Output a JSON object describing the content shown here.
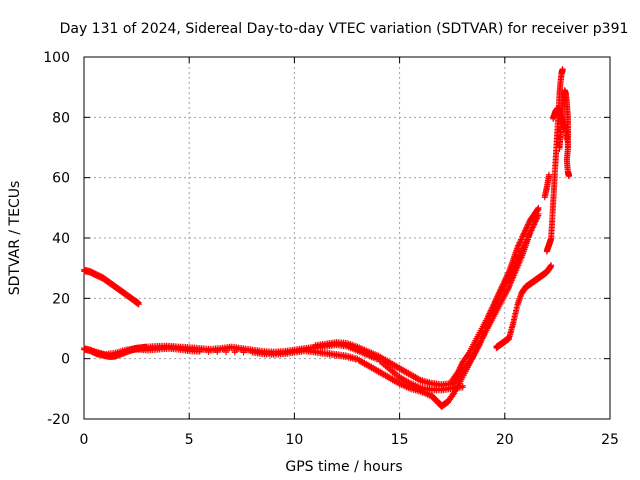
{
  "chart_data": {
    "type": "scatter",
    "title": "Day 131 of 2024, Sidereal Day-to-day VTEC variation (SDTVAR) for receiver p391",
    "xlabel": "GPS time / hours",
    "ylabel": "SDTVAR / TECUs",
    "xlim": [
      0,
      25
    ],
    "ylim": [
      -20,
      100
    ],
    "xticks": [
      0,
      5,
      10,
      15,
      20,
      25
    ],
    "yticks": [
      -20,
      0,
      20,
      40,
      60,
      80,
      100
    ],
    "xtick_labels": [
      "0",
      "5",
      "10",
      "15",
      "20",
      "25"
    ],
    "ytick_labels": [
      "-20",
      "0",
      "20",
      "40",
      "60",
      "80",
      "100"
    ],
    "grid": true,
    "marker": "plus",
    "color": "#ff0000",
    "series": [
      {
        "name": "arc-a-upper",
        "points": [
          [
            0,
            29.5
          ],
          [
            0.3,
            29
          ],
          [
            0.6,
            28
          ],
          [
            0.9,
            27
          ],
          [
            1.2,
            25.5
          ],
          [
            1.5,
            24
          ],
          [
            1.8,
            22.5
          ],
          [
            2.1,
            21
          ],
          [
            2.4,
            19.5
          ],
          [
            2.6,
            18.5
          ]
        ]
      },
      {
        "name": "arc-b-low",
        "points": [
          [
            0,
            3.5
          ],
          [
            0.3,
            3
          ],
          [
            0.6,
            2
          ],
          [
            0.9,
            1.5
          ],
          [
            1.2,
            1
          ],
          [
            1.5,
            1.2
          ],
          [
            1.8,
            2
          ],
          [
            2.1,
            2.8
          ],
          [
            2.4,
            3.5
          ],
          [
            2.7,
            3.8
          ],
          [
            3.0,
            4
          ],
          [
            3.5,
            4.2
          ],
          [
            4.0,
            4.3
          ],
          [
            4.5,
            4
          ],
          [
            5.0,
            3.8
          ],
          [
            5.5,
            3.5
          ],
          [
            6.0,
            3.2
          ],
          [
            6.5,
            3.5
          ],
          [
            7.0,
            4
          ],
          [
            7.5,
            3.5
          ],
          [
            8.0,
            3
          ],
          [
            8.5,
            2.5
          ],
          [
            9.0,
            2.3
          ],
          [
            9.5,
            2.5
          ],
          [
            10.0,
            3
          ],
          [
            10.5,
            3.5
          ],
          [
            11.0,
            4
          ],
          [
            11.5,
            4.5
          ],
          [
            12.0,
            5
          ],
          [
            12.5,
            4.5
          ],
          [
            13.0,
            3
          ],
          [
            13.5,
            1.5
          ],
          [
            14.0,
            0
          ],
          [
            14.5,
            -3
          ],
          [
            15.0,
            -6
          ],
          [
            15.5,
            -8
          ],
          [
            16.0,
            -9.5
          ],
          [
            16.5,
            -10
          ],
          [
            17.0,
            -10
          ],
          [
            17.5,
            -9.5
          ],
          [
            18.0,
            -9
          ]
        ]
      },
      {
        "name": "arc-c",
        "points": [
          [
            0.5,
            2.5
          ],
          [
            1.0,
            1.5
          ],
          [
            1.5,
            2
          ],
          [
            2.0,
            3
          ],
          [
            2.5,
            3.5
          ],
          [
            3.0,
            3.2
          ],
          [
            3.5,
            3.5
          ],
          [
            4.0,
            3.8
          ],
          [
            4.5,
            3.5
          ],
          [
            5.0,
            3
          ],
          [
            5.5,
            2.8
          ],
          [
            8.0,
            2.5
          ],
          [
            8.5,
            2
          ],
          [
            9.0,
            1.8
          ],
          [
            9.5,
            2
          ],
          [
            10.0,
            2.5
          ],
          [
            10.5,
            3
          ],
          [
            11.0,
            2.5
          ],
          [
            11.5,
            2
          ],
          [
            12.0,
            1.5
          ],
          [
            12.5,
            1
          ],
          [
            13.0,
            0
          ],
          [
            13.5,
            -2
          ],
          [
            14.0,
            -4
          ],
          [
            14.5,
            -6
          ],
          [
            15.0,
            -8
          ],
          [
            15.5,
            -9.5
          ],
          [
            16.0,
            -10.5
          ],
          [
            16.5,
            -12
          ],
          [
            16.8,
            -14
          ],
          [
            17.0,
            -15.5
          ],
          [
            17.3,
            -14
          ],
          [
            17.6,
            -11
          ],
          [
            17.9,
            -7
          ],
          [
            18.2,
            -3
          ],
          [
            18.5,
            1
          ],
          [
            18.8,
            5
          ],
          [
            19.1,
            10
          ],
          [
            19.3,
            13
          ]
        ]
      },
      {
        "name": "arc-d",
        "points": [
          [
            11.0,
            4.5
          ],
          [
            11.5,
            5
          ],
          [
            12.0,
            5.5
          ],
          [
            12.5,
            5.2
          ],
          [
            13.0,
            4
          ],
          [
            13.5,
            2.5
          ],
          [
            14.0,
            1
          ],
          [
            14.5,
            -1
          ],
          [
            15.0,
            -3
          ],
          [
            15.5,
            -5
          ],
          [
            16.0,
            -7
          ],
          [
            16.5,
            -8
          ],
          [
            17.0,
            -8.5
          ],
          [
            17.5,
            -8
          ],
          [
            17.8,
            -6
          ],
          [
            18.1,
            -3
          ],
          [
            18.4,
            0
          ],
          [
            18.7,
            4
          ],
          [
            19.0,
            8
          ],
          [
            19.3,
            12
          ],
          [
            19.6,
            16
          ],
          [
            19.9,
            20
          ],
          [
            20.2,
            24
          ],
          [
            20.5,
            29
          ],
          [
            20.8,
            34
          ],
          [
            21.0,
            38
          ],
          [
            21.2,
            42
          ]
        ]
      },
      {
        "name": "arc-e",
        "points": [
          [
            17.5,
            -7
          ],
          [
            17.8,
            -4
          ],
          [
            18.0,
            -1
          ],
          [
            18.3,
            2
          ],
          [
            18.6,
            6
          ],
          [
            18.9,
            10
          ],
          [
            19.2,
            14
          ],
          [
            19.4,
            17
          ],
          [
            19.6,
            20
          ],
          [
            19.8,
            23
          ],
          [
            20.0,
            26
          ],
          [
            20.2,
            29
          ],
          [
            20.4,
            33
          ],
          [
            20.6,
            37
          ],
          [
            20.8,
            40
          ],
          [
            21.0,
            43
          ],
          [
            21.2,
            46
          ],
          [
            21.4,
            48
          ],
          [
            21.6,
            50
          ]
        ]
      },
      {
        "name": "arc-f",
        "points": [
          [
            19.4,
            14
          ],
          [
            19.6,
            18
          ],
          [
            19.8,
            22
          ],
          [
            20.0,
            25
          ],
          [
            20.2,
            27
          ],
          [
            20.4,
            30
          ],
          [
            20.6,
            33
          ],
          [
            20.8,
            36
          ],
          [
            21.0,
            39
          ],
          [
            21.2,
            42
          ],
          [
            21.4,
            45
          ],
          [
            21.6,
            48
          ]
        ]
      },
      {
        "name": "arc-g",
        "points": [
          [
            19.6,
            4
          ],
          [
            19.8,
            5
          ],
          [
            20.0,
            6
          ],
          [
            20.2,
            7
          ],
          [
            20.4,
            12
          ],
          [
            20.6,
            18
          ],
          [
            20.8,
            22
          ],
          [
            21.0,
            24
          ],
          [
            21.2,
            25
          ],
          [
            21.4,
            26
          ],
          [
            21.6,
            27
          ],
          [
            21.8,
            28
          ],
          [
            22.0,
            29
          ],
          [
            22.2,
            31
          ]
        ]
      },
      {
        "name": "arc-h",
        "points": [
          [
            21.9,
            54
          ],
          [
            22.0,
            57
          ],
          [
            22.1,
            61
          ]
        ]
      },
      {
        "name": "arc-i",
        "points": [
          [
            22.0,
            36
          ],
          [
            22.1,
            38
          ],
          [
            22.2,
            40
          ],
          [
            22.25,
            46
          ],
          [
            22.3,
            52
          ],
          [
            22.35,
            58
          ],
          [
            22.4,
            64
          ],
          [
            22.45,
            70
          ],
          [
            22.5,
            76
          ],
          [
            22.55,
            82
          ],
          [
            22.6,
            88
          ],
          [
            22.65,
            92
          ],
          [
            22.7,
            95
          ],
          [
            22.75,
            96
          ]
        ]
      },
      {
        "name": "arc-j",
        "points": [
          [
            22.6,
            70
          ],
          [
            22.65,
            75
          ],
          [
            22.7,
            80
          ],
          [
            22.75,
            84
          ],
          [
            22.8,
            87
          ],
          [
            22.85,
            89
          ],
          [
            22.9,
            88
          ],
          [
            22.95,
            85
          ],
          [
            23.0,
            80
          ],
          [
            23.0,
            75
          ],
          [
            23.0,
            70
          ],
          [
            22.95,
            66
          ],
          [
            23.0,
            62
          ],
          [
            23.05,
            61
          ]
        ]
      },
      {
        "name": "arc-k",
        "points": [
          [
            22.3,
            80
          ],
          [
            22.4,
            82
          ],
          [
            22.5,
            83
          ],
          [
            22.6,
            82
          ],
          [
            22.7,
            80
          ],
          [
            22.8,
            78
          ],
          [
            22.9,
            76
          ],
          [
            22.95,
            73
          ]
        ]
      }
    ]
  }
}
